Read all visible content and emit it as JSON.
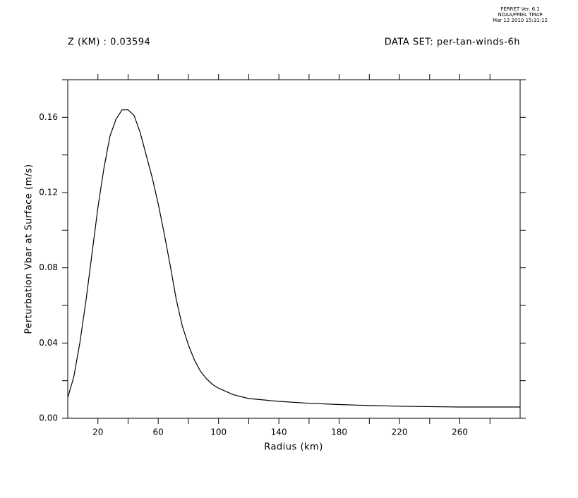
{
  "chart_data": {
    "type": "line",
    "stamp": [
      "FERRET Ver. 6.1",
      "NOAA/PMEL TMAP",
      "Mar 12 2010 15:31:12"
    ],
    "header_left": "Z (KM) : 0.03594",
    "header_right": "DATA SET: per-tan-winds-6h",
    "x_label": "Radius (km)",
    "y_label": "Perturbation Vbar at Surface (m/s)",
    "x": [
      0,
      4,
      8,
      12,
      16,
      20,
      24,
      28,
      32,
      36,
      40,
      44,
      48,
      52,
      56,
      60,
      64,
      68,
      72,
      76,
      80,
      84,
      88,
      92,
      96,
      100,
      110,
      120,
      140,
      160,
      180,
      200,
      220,
      260,
      300
    ],
    "series": [
      {
        "color": "#000000",
        "values": [
          0.011,
          0.022,
          0.04,
          0.062,
          0.087,
          0.112,
          0.133,
          0.15,
          0.159,
          0.164,
          0.164,
          0.161,
          0.152,
          0.14,
          0.128,
          0.114,
          0.098,
          0.081,
          0.063,
          0.049,
          0.039,
          0.031,
          0.025,
          0.021,
          0.018,
          0.016,
          0.0125,
          0.0105,
          0.009,
          0.008,
          0.0073,
          0.0068,
          0.0064,
          0.006,
          0.006
        ]
      }
    ],
    "xlim": [
      0,
      300
    ],
    "xticks": [
      20,
      60,
      100,
      140,
      180,
      220,
      260
    ],
    "x_minor_ticks": [
      40,
      80,
      120,
      160,
      200,
      240,
      280
    ],
    "ylim": [
      0,
      0.18
    ],
    "yticks": [
      {
        "value": 0,
        "label": "0.00"
      },
      0.04,
      0.08,
      0.12,
      0.16
    ],
    "y_minor_ticks": [
      0.02,
      0.06,
      0.1,
      0.14,
      0.18
    ]
  }
}
